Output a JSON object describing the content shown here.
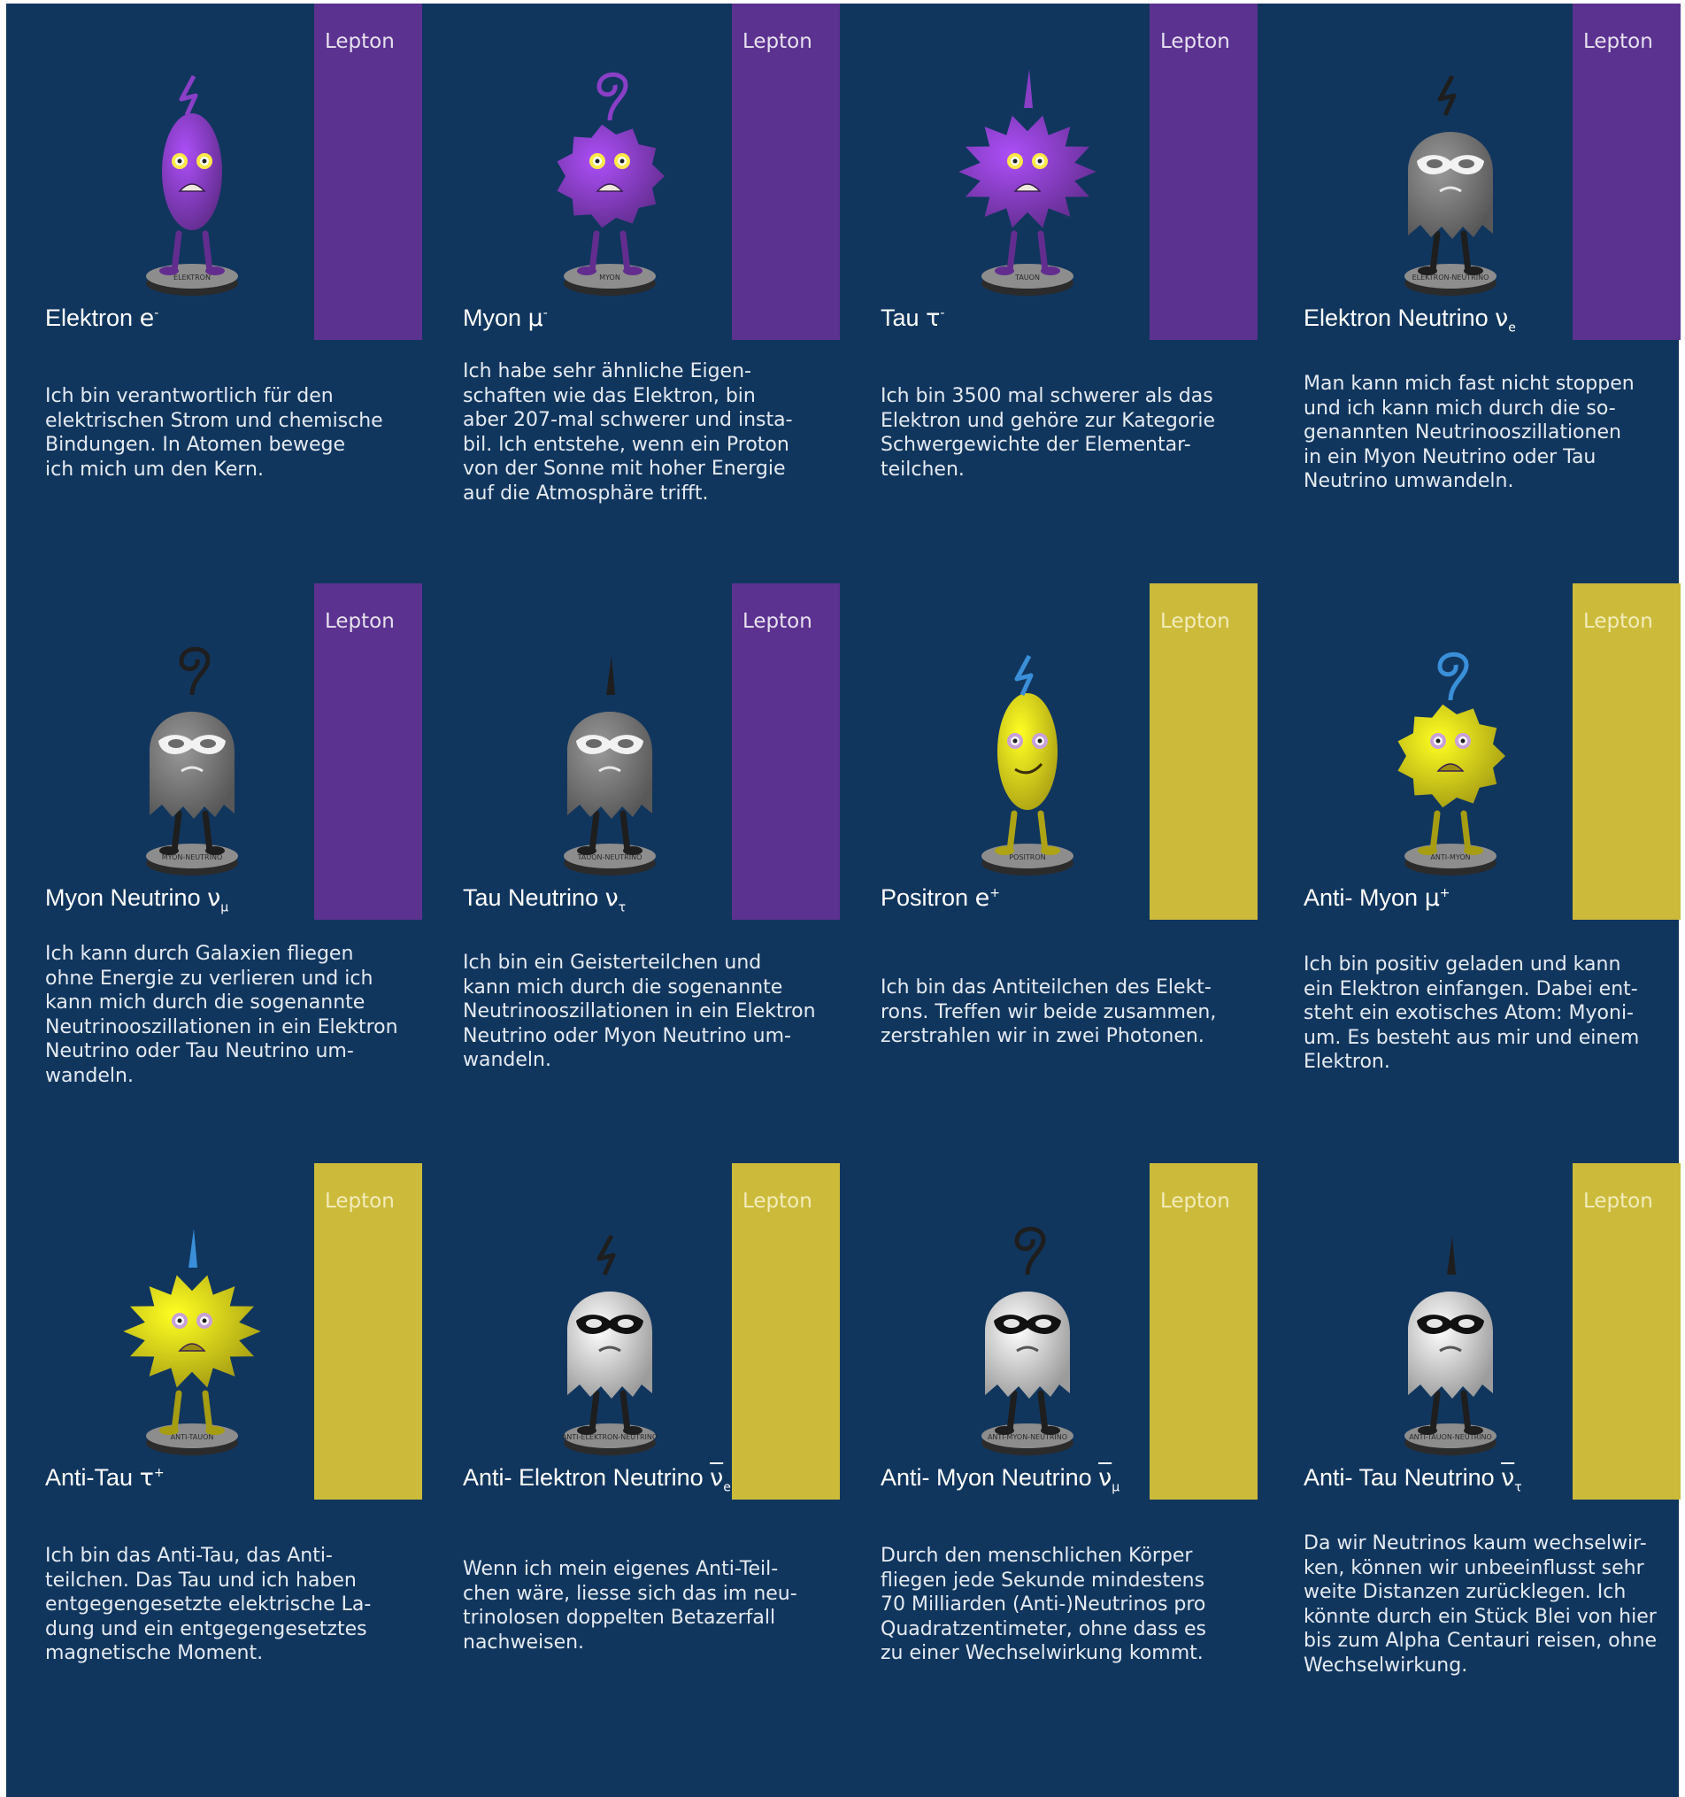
{
  "band_label": "Lepton",
  "colors": {
    "background": "#11365e",
    "particle_band": "#5b3290",
    "antiparticle_band": "#ccbb3b"
  },
  "cards": [
    {
      "name": "Elektron",
      "symbol": "e",
      "sup": "-",
      "sub": "",
      "overline": false,
      "band": "purple",
      "body": "#8a3fc7",
      "body_style": "smooth",
      "top": "bolt",
      "mask": false,
      "stand_label": "ELEKTRON",
      "description": "Ich bin verantwortlich für den\nelektrischen Strom und chemische\nBindungen. In Atomen bewege\nich mich um den Kern."
    },
    {
      "name": "Myon",
      "symbol": "µ",
      "sup": "-",
      "sub": "",
      "overline": false,
      "band": "purple",
      "body": "#8a3fc7",
      "body_style": "fuzzy",
      "top": "spiral",
      "mask": false,
      "stand_label": "MYON",
      "description": "Ich habe sehr ähnliche Eigen-\nschaften wie das Elektron, bin\naber 207-mal schwerer und insta-\nbil. Ich entstehe, wenn ein Proton\nvon der Sonne mit hoher Energie\nauf die Atmosphäre trifft."
    },
    {
      "name": "Tau",
      "symbol": "τ",
      "sup": "-",
      "sub": "",
      "overline": false,
      "band": "purple",
      "body": "#8a3fc7",
      "body_style": "spiky",
      "top": "spike",
      "mask": false,
      "stand_label": "TAUON",
      "description": "Ich bin 3500 mal schwerer als das\nElektron und gehöre zur Kategorie\nSchwergewichte der Elementar-\nteilchen."
    },
    {
      "name": "Elektron Neutrino",
      "symbol": "ν",
      "sup": "",
      "sub": "e",
      "overline": false,
      "band": "purple",
      "body": "#7a7a7a",
      "body_style": "ghost",
      "top": "bolt",
      "mask": true,
      "stand_label": "ELEKTRON-NEUTRINO",
      "description": "Man kann mich fast nicht stoppen\nund ich kann mich durch die so-\ngenannten Neutrinooszillationen\nin ein Myon Neutrino oder Tau\nNeutrino umwandeln."
    },
    {
      "name": "Myon Neutrino",
      "symbol": "ν",
      "sup": "",
      "sub": "μ",
      "overline": false,
      "band": "purple",
      "body": "#7a7a7a",
      "body_style": "ghost",
      "top": "spiral",
      "mask": true,
      "stand_label": "MYON-NEUTRINO",
      "description": "Ich kann durch Galaxien fliegen\nohne Energie zu verlieren und ich\nkann mich durch die sogenannte\nNeutrinooszillationen in ein Elektron\nNeutrino oder Tau Neutrino um-\nwandeln."
    },
    {
      "name": "Tau Neutrino",
      "symbol": "ν",
      "sup": "",
      "sub": "τ",
      "overline": false,
      "band": "purple",
      "body": "#7a7a7a",
      "body_style": "ghost",
      "top": "spike",
      "mask": true,
      "stand_label": "TAUON-NEUTRINO",
      "description": "Ich bin ein Geisterteilchen und\nkann mich durch die sogenannte\nNeutrinooszillationen in ein Elektron\nNeutrino oder Myon Neutrino um-\nwandeln."
    },
    {
      "name": "Positron",
      "symbol": "e",
      "sup": "+",
      "sub": "",
      "overline": false,
      "band": "yellow",
      "body": "#f0e21c",
      "body_style": "smooth",
      "top": "bolt",
      "mask": false,
      "stand_label": "POSITRON",
      "description": "Ich bin das Antiteilchen des Elekt-\nrons. Treffen wir beide zusammen,\nzerstrahlen wir in zwei Photonen."
    },
    {
      "name": "Anti- Myon",
      "symbol": "µ",
      "sup": "+",
      "sub": "",
      "overline": false,
      "band": "yellow",
      "body": "#e6da1a",
      "body_style": "fuzzy",
      "top": "spiral",
      "mask": false,
      "stand_label": "ANTI-MYON",
      "description": "Ich bin positiv geladen und kann\nein Elektron einfangen. Dabei ent-\nsteht ein exotisches Atom: Myoni-\num. Es besteht aus mir und einem\nElektron."
    },
    {
      "name": "Anti-Tau",
      "symbol": "τ",
      "sup": "+",
      "sub": "",
      "overline": false,
      "band": "yellow",
      "body": "#e6da1a",
      "body_style": "spiky",
      "top": "spike",
      "mask": false,
      "stand_label": "ANTI-TAUON",
      "description": "Ich bin das Anti-Tau, das Anti-\nteilchen. Das Tau und ich haben\nentgegengesetzte elektrische La-\ndung und ein entgegengesetztes\nmagnetische Moment."
    },
    {
      "name": "Anti- Elektron Neutrino",
      "symbol": "ν",
      "sup": "",
      "sub": "e",
      "overline": true,
      "band": "yellow",
      "body": "#d9d9d9",
      "body_style": "ghost",
      "top": "bolt",
      "mask": true,
      "stand_label": "ANTI-ELEKTRON-NEUTRINO",
      "description": "Wenn ich mein eigenes Anti-Teil-\nchen wäre, liesse sich das im neu-\ntrinolosen doppelten Betazerfall\nnachweisen."
    },
    {
      "name": "Anti- Myon Neutrino",
      "symbol": "ν",
      "sup": "",
      "sub": "μ",
      "overline": true,
      "band": "yellow",
      "body": "#d9d9d9",
      "body_style": "ghost",
      "top": "spiral",
      "mask": true,
      "stand_label": "ANTI-MYON-NEUTRINO",
      "description": "Durch den menschlichen Körper\nfliegen jede Sekunde mindestens\n70 Milliarden (Anti-)Neutrinos pro\nQuadratzentimeter, ohne dass es\nzu einer Wechselwirkung kommt."
    },
    {
      "name": "Anti- Tau Neutrino",
      "symbol": "ν",
      "sup": "",
      "sub": "τ",
      "overline": true,
      "band": "yellow",
      "body": "#d9d9d9",
      "body_style": "ghost",
      "top": "spike",
      "mask": true,
      "stand_label": "ANTI-TAUON-NEUTRINO",
      "description": "Da wir Neutrinos kaum wechselwir-\nken, können wir unbeeinflusst sehr\nweite Distanzen zurücklegen. Ich\nkönnte durch ein Stück Blei von hier\nbis zum Alpha Centauri reisen, ohne\nWechselwirkung."
    }
  ]
}
